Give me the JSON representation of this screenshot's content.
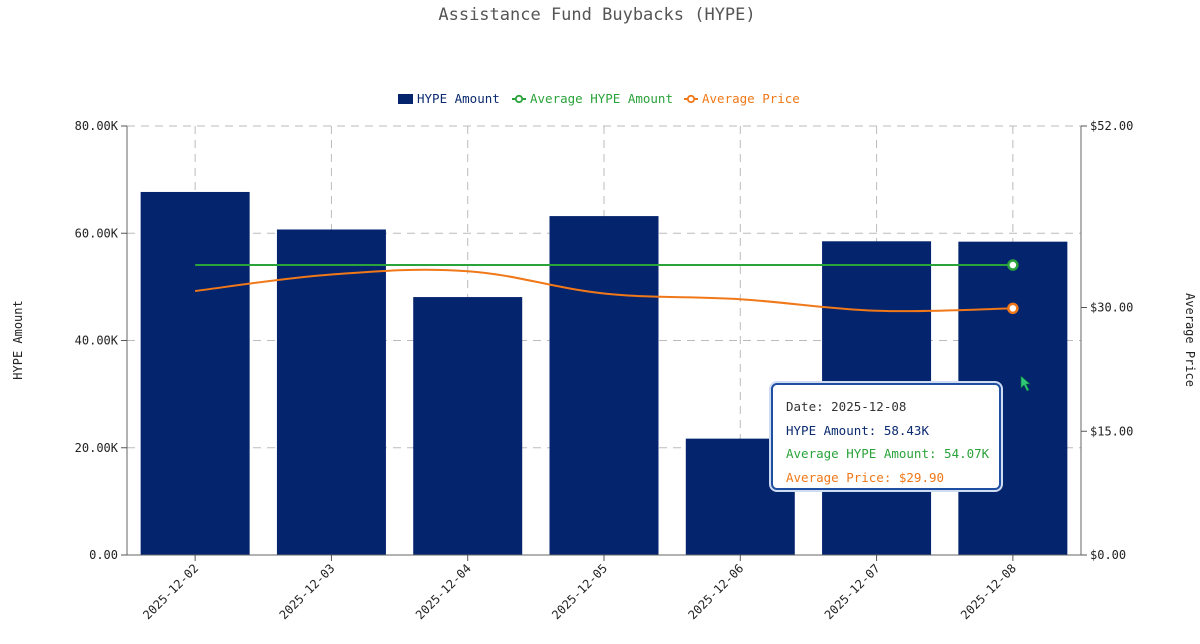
{
  "chart_data": {
    "type": "bar",
    "title": "Assistance Fund Buybacks (HYPE)",
    "categories": [
      "2025-12-02",
      "2025-12-03",
      "2025-12-04",
      "2025-12-05",
      "2025-12-06",
      "2025-12-07",
      "2025-12-08"
    ],
    "series": [
      {
        "name": "HYPE Amount",
        "type": "bar",
        "axis": "left",
        "color": "#05246e",
        "values": [
          67700,
          60700,
          48100,
          63200,
          21700,
          58500,
          58430
        ]
      },
      {
        "name": "Average HYPE Amount",
        "type": "line",
        "axis": "left",
        "color": "#2aa33a",
        "values": [
          54070,
          54070,
          54070,
          54070,
          54070,
          54070,
          54070
        ]
      },
      {
        "name": "Average Price",
        "type": "line",
        "axis": "right",
        "color": "#f07818",
        "values": [
          32.0,
          34.0,
          34.4,
          31.7,
          31.0,
          29.6,
          29.9
        ]
      }
    ],
    "ylabel": "HYPE Amount",
    "ylim": [
      0,
      80000
    ],
    "yticks": [
      "0.00",
      "20.00K",
      "40.00K",
      "60.00K",
      "80.00K"
    ],
    "ytick_values": [
      0,
      20000,
      40000,
      60000,
      80000
    ],
    "y2label": "Average Price",
    "y2lim": [
      0,
      52
    ],
    "y2ticks": [
      "$0.00",
      "$15.00",
      "$30.00",
      "$52.00"
    ],
    "y2tick_values": [
      0,
      15,
      30,
      52
    ],
    "grid": true,
    "legend_position": "top-center",
    "tooltip": {
      "date": "Date: 2025-12-08",
      "amount": "HYPE Amount: 58.43K",
      "avg_amount": "Average HYPE Amount: 54.07K",
      "price": "Average Price: $29.90"
    }
  }
}
